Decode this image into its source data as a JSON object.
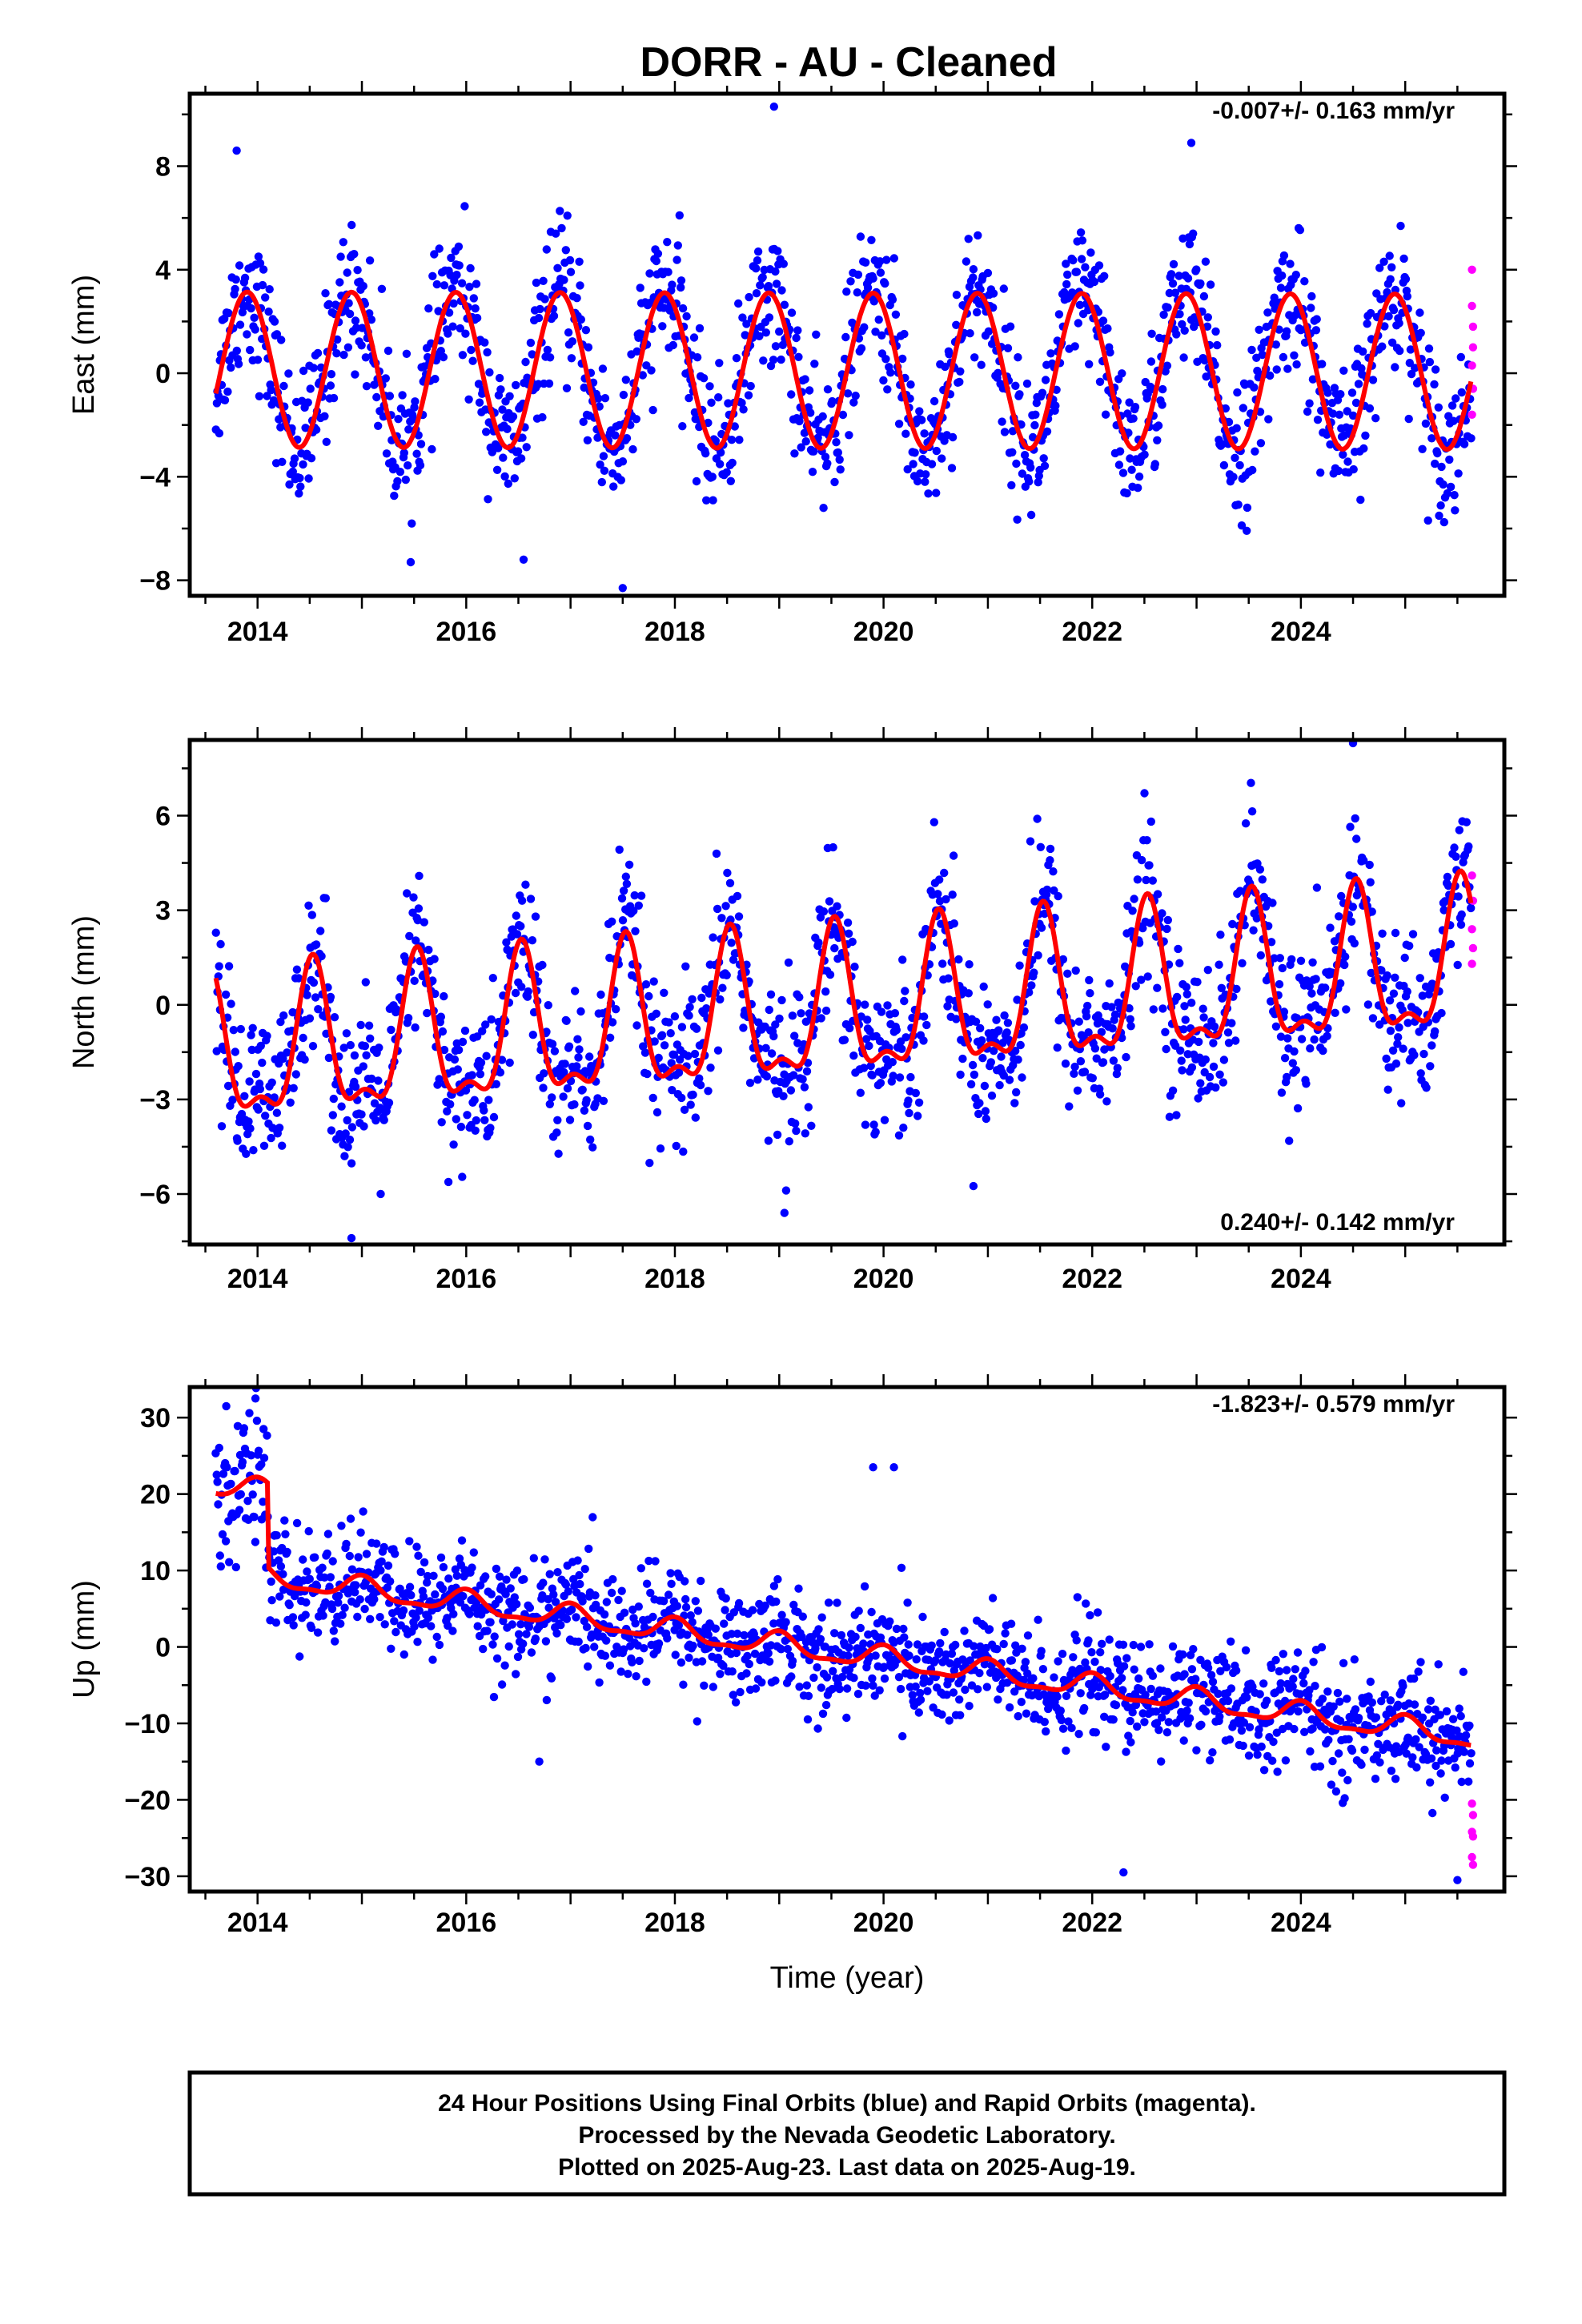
{
  "title": "DORR  - AU - Cleaned",
  "footer": [
    "24 Hour Positions Using Final Orbits (blue) and Rapid Orbits (magenta).",
    "Processed by the Nevada Geodetic Laboratory.",
    "Plotted on 2025-Aug-23. Last data on 2025-Aug-19."
  ],
  "colors": {
    "final": "#0000ff",
    "rapid": "#ff00ff",
    "model": "#ff0000"
  },
  "chart_data": [
    {
      "type": "scatter",
      "ylabel": "East (mm)",
      "xlabel": "",
      "rate": "-0.007+/- 0.163 mm/yr",
      "xlim": [
        2013.35,
        2025.95
      ],
      "ylim": [
        -8.6,
        10.8
      ],
      "yticks": [
        -8,
        -4,
        0,
        4,
        8
      ],
      "xticks": [
        2014,
        2016,
        2018,
        2020,
        2022,
        2024
      ],
      "xtick_labels": [
        "2014",
        "2016",
        "2018",
        "2020",
        "2022",
        "2024"
      ],
      "data_span": [
        2013.6,
        2025.63
      ],
      "model": {
        "offset": 0.1,
        "trend": -0.007,
        "t0": 2019.5,
        "annual_amp": 3.0,
        "annual_peak": 2013.9,
        "semi_amp": 0.0,
        "semi_peak": 2014.0
      },
      "scatter_sd": 1.35,
      "rapid_points": [
        [
          2025.64,
          4.0
        ],
        [
          2025.64,
          2.6
        ],
        [
          2025.65,
          1.8
        ],
        [
          2025.65,
          1.0
        ],
        [
          2025.64,
          0.3
        ],
        [
          2025.65,
          -0.6
        ],
        [
          2025.64,
          -1.6
        ]
      ],
      "outliers": [
        [
          2013.8,
          8.6
        ],
        [
          2018.95,
          10.3
        ],
        [
          2022.95,
          8.9
        ],
        [
          2017.5,
          -8.3
        ],
        [
          2016.55,
          -7.2
        ]
      ],
      "series": [
        {
          "name": "Final Orbits",
          "color": "#0000ff"
        },
        {
          "name": "Rapid Orbits",
          "color": "#ff00ff"
        }
      ]
    },
    {
      "type": "scatter",
      "ylabel": "North (mm)",
      "xlabel": "",
      "rate": "0.240+/- 0.142 mm/yr",
      "xlim": [
        2013.35,
        2025.95
      ],
      "ylim": [
        -7.6,
        8.4
      ],
      "yticks": [
        -6,
        -3,
        0,
        3,
        6
      ],
      "xticks": [
        2014,
        2016,
        2018,
        2020,
        2022,
        2024
      ],
      "xtick_labels": [
        "2014",
        "2016",
        "2018",
        "2020",
        "2022",
        "2024"
      ],
      "data_span": [
        2013.6,
        2025.63
      ],
      "model": {
        "offset": -0.3,
        "trend": 0.24,
        "t0": 2019.5,
        "annual_amp": 2.2,
        "annual_peak": 2014.53,
        "semi_amp": 0.9,
        "semi_peak": 2014.53
      },
      "scatter_sd": 1.25,
      "rapid_points": [
        [
          2025.64,
          4.1
        ],
        [
          2025.65,
          3.3
        ],
        [
          2025.64,
          2.4
        ],
        [
          2025.65,
          1.8
        ],
        [
          2025.64,
          1.3
        ]
      ],
      "outliers": [
        [
          2024.5,
          8.3
        ],
        [
          2014.9,
          -7.4
        ],
        [
          2019.05,
          -6.6
        ]
      ],
      "series": [
        {
          "name": "Final Orbits",
          "color": "#0000ff"
        },
        {
          "name": "Rapid Orbits",
          "color": "#ff00ff"
        }
      ]
    },
    {
      "type": "scatter",
      "ylabel": "Up (mm)",
      "xlabel": "Time (year)",
      "rate": "-1.823+/- 0.579 mm/yr",
      "xlim": [
        2013.35,
        2025.95
      ],
      "ylim": [
        -32,
        34
      ],
      "yticks": [
        -30,
        -20,
        -10,
        0,
        10,
        20,
        30
      ],
      "xticks": [
        2014,
        2016,
        2018,
        2020,
        2022,
        2024
      ],
      "xtick_labels": [
        "2014",
        "2016",
        "2018",
        "2020",
        "2022",
        "2024"
      ],
      "data_span": [
        2013.6,
        2025.63
      ],
      "model": {
        "offset": -0.7,
        "trend": -1.823,
        "t0": 2019.5,
        "annual_amp": 1.4,
        "annual_peak": 2014.0,
        "semi_amp": 0.5,
        "semi_peak": 2014.0,
        "early_offset": 11.0,
        "early_end": 2014.1
      },
      "scatter_sd": 3.6,
      "rapid_points": [
        [
          2025.64,
          -20.5
        ],
        [
          2025.65,
          -22.0
        ],
        [
          2025.64,
          -24.2
        ],
        [
          2025.65,
          -24.8
        ],
        [
          2025.64,
          -27.5
        ],
        [
          2025.65,
          -28.5
        ]
      ],
      "outliers": [
        [
          2013.98,
          32.5
        ],
        [
          2013.7,
          31.5
        ],
        [
          2019.9,
          23.5
        ],
        [
          2020.1,
          23.5
        ],
        [
          2022.3,
          -29.5
        ],
        [
          2025.5,
          -30.5
        ],
        [
          2016.7,
          -15.0
        ]
      ],
      "series": [
        {
          "name": "Final Orbits",
          "color": "#0000ff"
        },
        {
          "name": "Rapid Orbits",
          "color": "#ff00ff"
        }
      ]
    }
  ]
}
